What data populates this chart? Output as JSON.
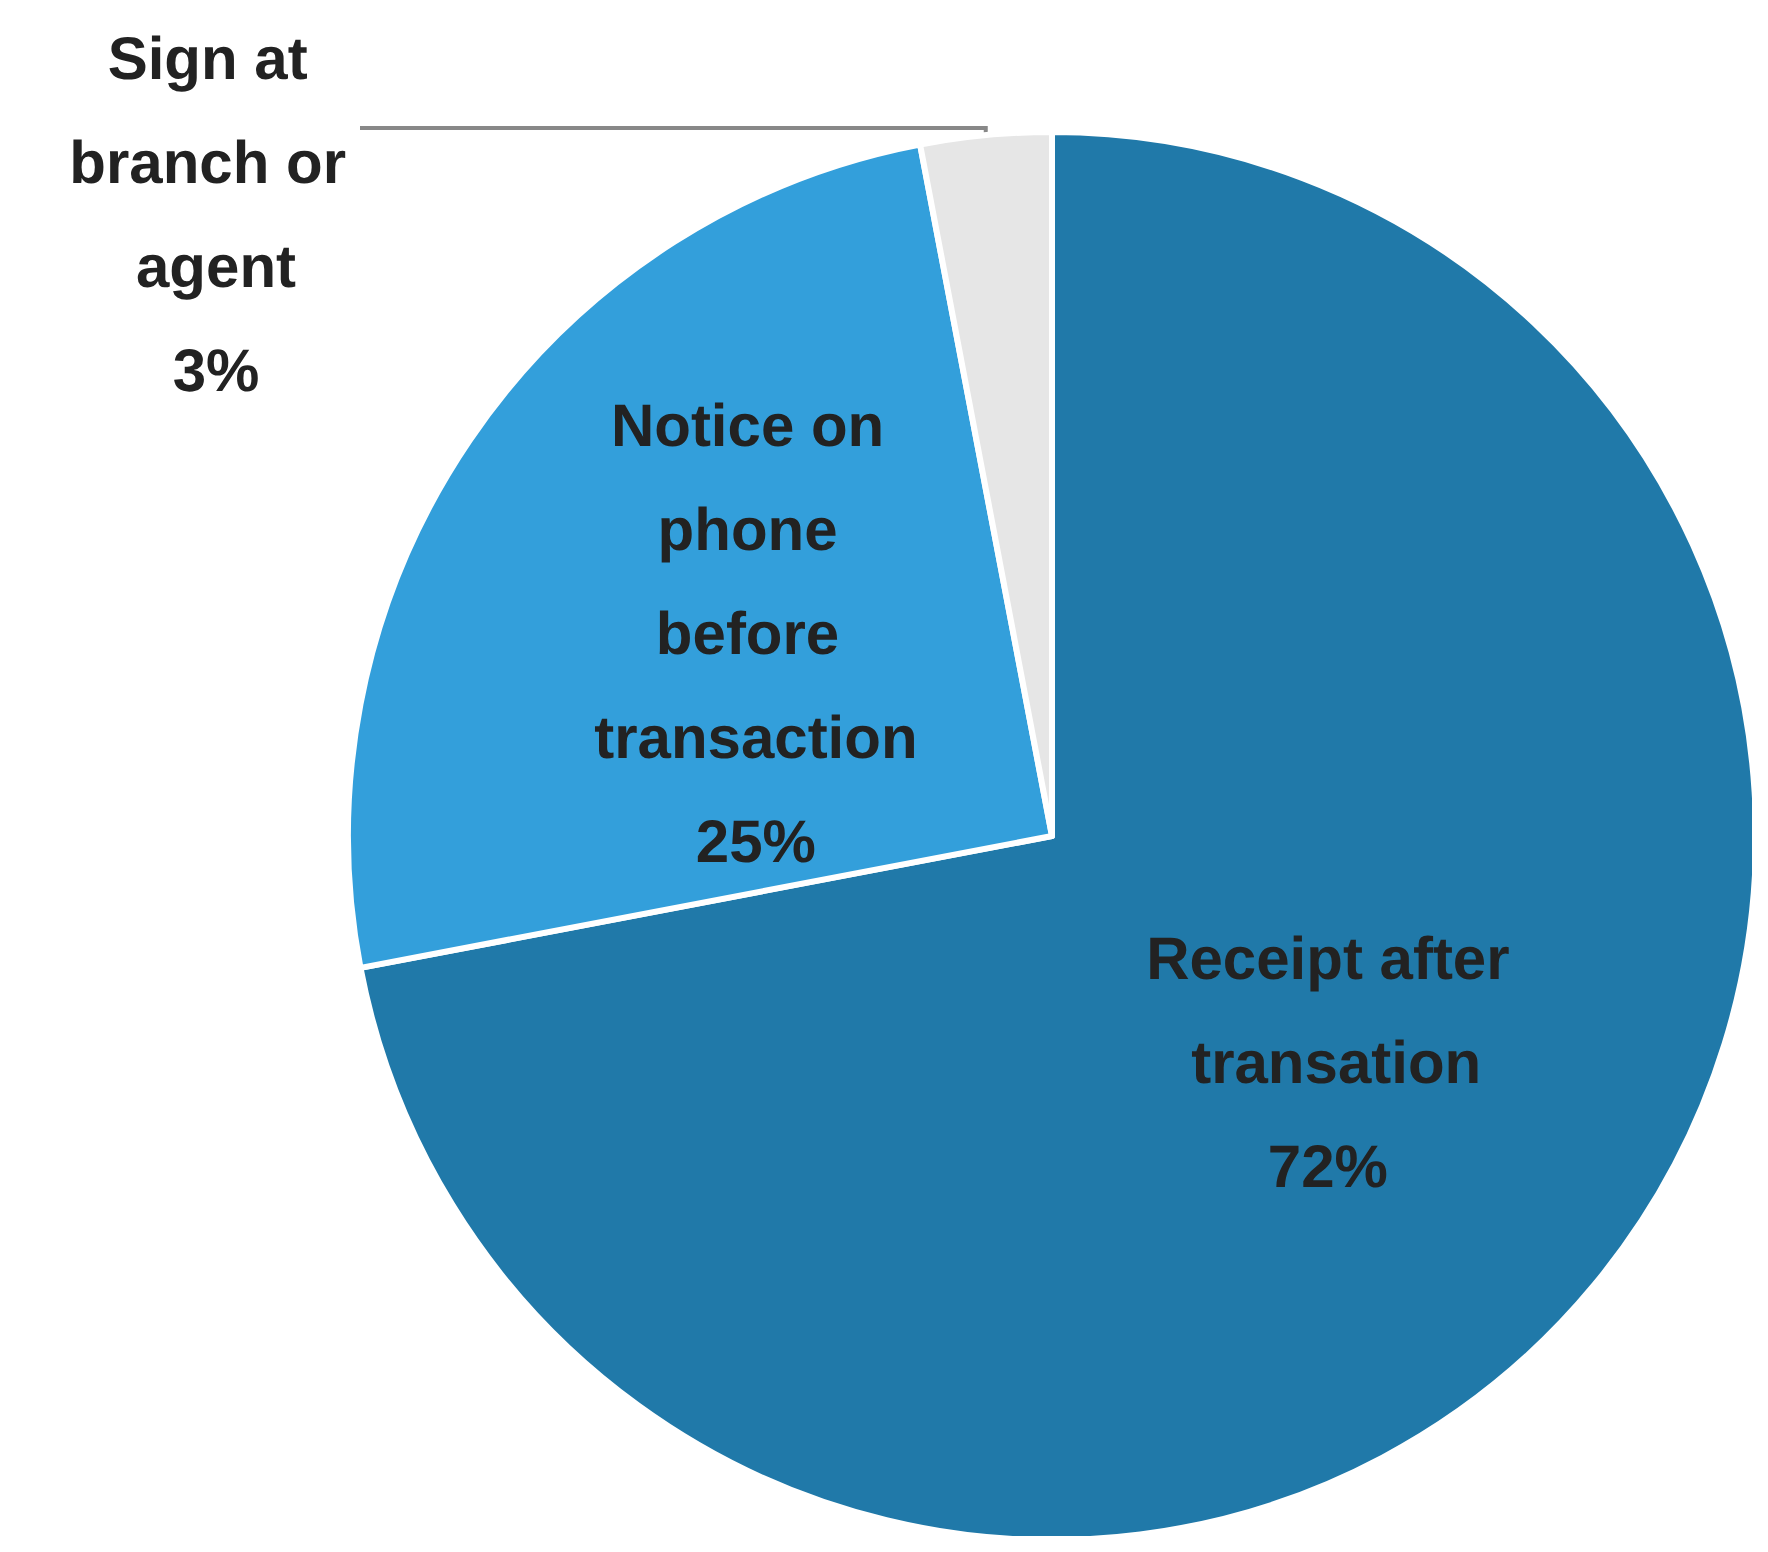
{
  "chart_data": {
    "type": "pie",
    "categories": [
      "Receipt after transation",
      "Notice on phone before transaction",
      "Sign at branch or agent"
    ],
    "values": [
      72,
      25,
      3
    ],
    "value_labels": [
      "72%",
      "25%",
      "3%"
    ],
    "colors": [
      "#2079a9",
      "#339fdb",
      "#e6e6e6"
    ],
    "legend": false
  }
}
